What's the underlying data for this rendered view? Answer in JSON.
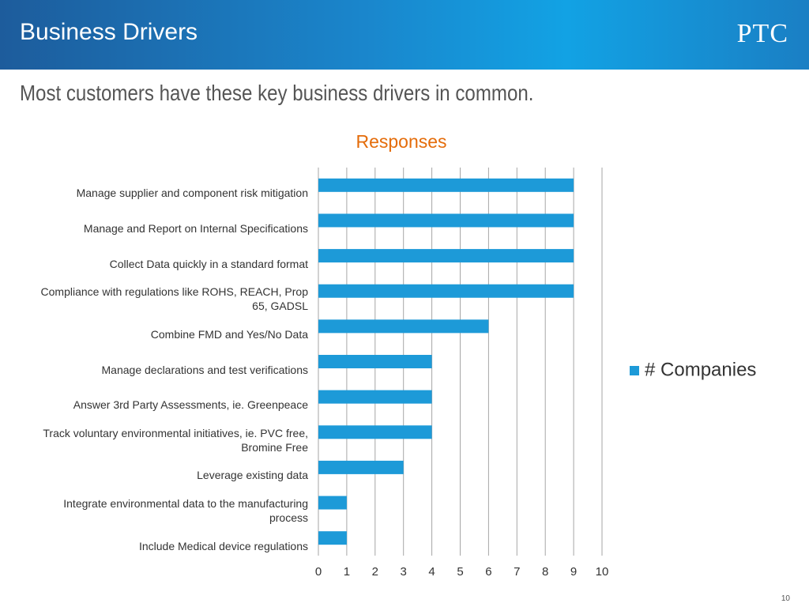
{
  "header": {
    "title": "Business Drivers",
    "logo": "PTC"
  },
  "slide": {
    "subtitle": "Most customers have these key business drivers in common.",
    "page_number": "10"
  },
  "chart_data": {
    "type": "hbar",
    "title": "Responses",
    "categories": [
      "Manage supplier and component risk mitigation",
      "Manage and Report on Internal Specifications",
      "Collect Data quickly in a standard format",
      "Compliance with regulations like ROHS, REACH, Prop 65, GADSL",
      "Combine FMD and Yes/No Data",
      "Manage declarations and test verifications",
      "Answer 3rd Party Assessments, ie. Greenpeace",
      "Track voluntary environmental initiatives, ie. PVC free, Bromine Free",
      "Leverage existing data",
      "Integrate environmental data to the manufacturing process",
      "Include Medical device regulations"
    ],
    "series": [
      {
        "name": "# Companies",
        "color": "#1d9ad8",
        "values": [
          9,
          9,
          9,
          9,
          6,
          4,
          4,
          4,
          3,
          1,
          1
        ]
      }
    ],
    "xlim": [
      0,
      10
    ],
    "xticks": [
      0,
      1,
      2,
      3,
      4,
      5,
      6,
      7,
      8,
      9,
      10
    ],
    "grid": true,
    "legend": "right"
  }
}
